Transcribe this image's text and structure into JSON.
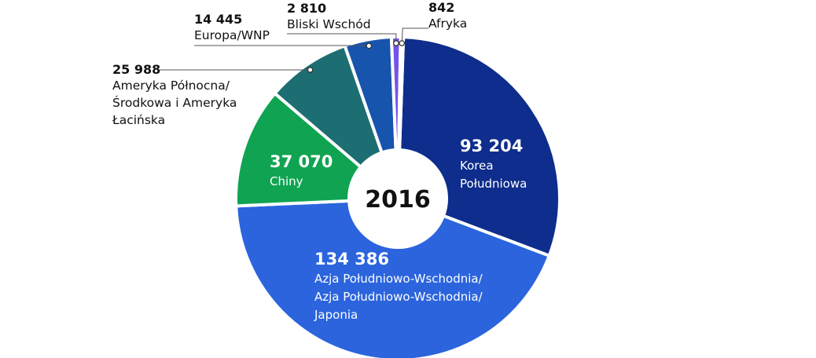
{
  "chart_data": {
    "type": "pie",
    "donut": true,
    "center_label": "2016",
    "slices": [
      {
        "value": 93204,
        "value_label": "93 204",
        "lines": [
          "Korea",
          "Południowa"
        ],
        "color": "#0e2d8c",
        "label_style": "inside"
      },
      {
        "value": 134386,
        "value_label": "134 386",
        "lines": [
          "Azja Południowo-Wschodnia/",
          "Azja Południowo-Wschodnia/",
          "Japonia"
        ],
        "color": "#2b64dd",
        "label_style": "inside"
      },
      {
        "value": 37070,
        "value_label": "37 070",
        "lines": [
          "Chiny"
        ],
        "color": "#10a452",
        "label_style": "inside"
      },
      {
        "value": 25988,
        "value_label": "25 988",
        "lines": [
          "Ameryka Północna/",
          "Środkowa i Ameryka",
          "Łacińska"
        ],
        "color": "#1d6e72",
        "label_style": "callout"
      },
      {
        "value": 14445,
        "value_label": "14 445",
        "lines": [
          "Europa/WNP"
        ],
        "color": "#1654ad",
        "label_style": "callout"
      },
      {
        "value": 2810,
        "value_label": "2 810",
        "lines": [
          "Bliski Wschód"
        ],
        "color": "#7653ea",
        "label_style": "callout"
      },
      {
        "value": 842,
        "value_label": "842",
        "lines": [
          "Afryka"
        ],
        "color": "#3a86cc",
        "label_style": "callout"
      }
    ]
  }
}
